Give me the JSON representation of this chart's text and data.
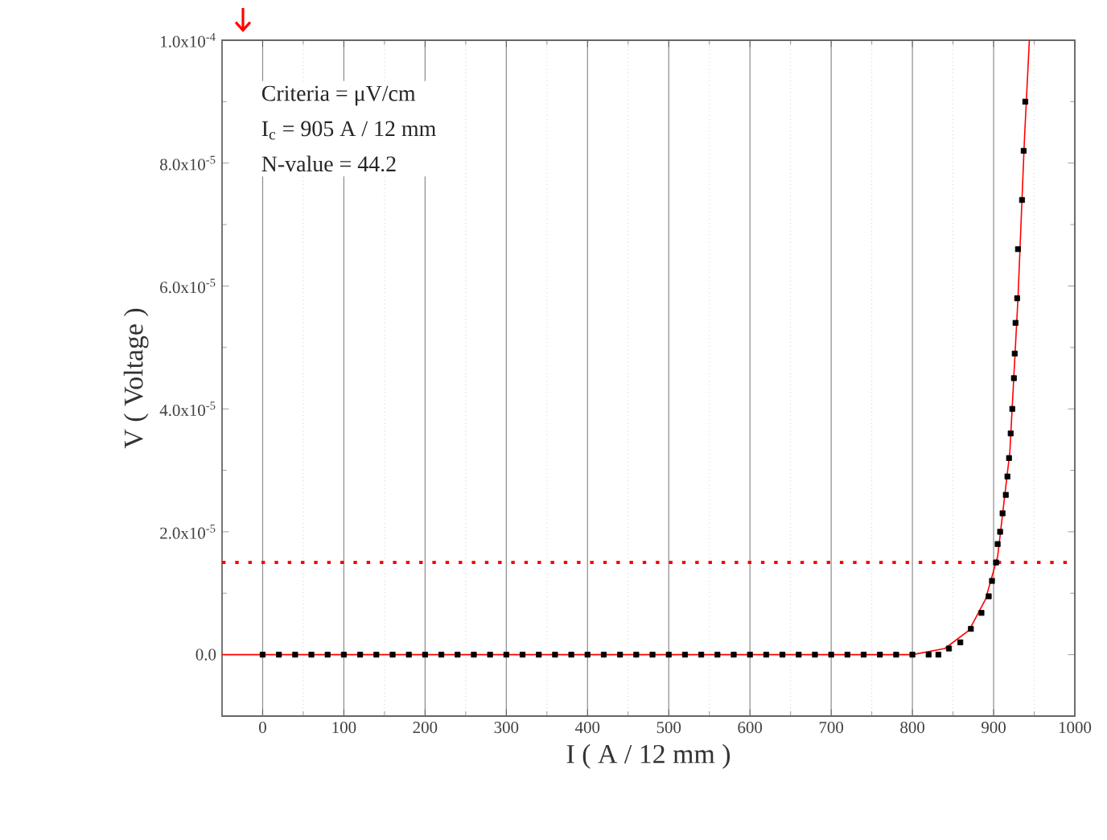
{
  "chart_data": {
    "type": "scatter",
    "xlabel": "I ( A / 12 mm )",
    "ylabel": "V ( Voltage )",
    "annotations": [
      "Criteria = μV/cm",
      "I$_{c}$ = 905 A / 12 mm",
      "N-value = 44.2"
    ],
    "xlim": [
      -50,
      1000
    ],
    "ylim": [
      -1e-05,
      0.0001
    ],
    "xticks": [
      0,
      100,
      200,
      300,
      400,
      500,
      600,
      700,
      800,
      900,
      1000
    ],
    "yticks": [
      {
        "value": 0,
        "label": "0.0"
      },
      {
        "value": 2e-05,
        "label": "2.0x10$^{-5}$"
      },
      {
        "value": 4e-05,
        "label": "4.0x10$^{-5}$"
      },
      {
        "value": 6e-05,
        "label": "6.0x10$^{-5}$"
      },
      {
        "value": 8e-05,
        "label": "8.0x10$^{-5}$"
      },
      {
        "value": 0.0001,
        "label": "1.0x10$^{-4}$"
      }
    ],
    "grid": "x",
    "ref_lines": [
      {
        "axis": "y",
        "value": 1.5e-05,
        "color": "#ff0000",
        "line_style": "dotted"
      }
    ],
    "series": [
      {
        "color": "#000000",
        "marker": "square",
        "x": [
          0,
          20,
          40,
          60,
          80,
          100,
          120,
          140,
          160,
          180,
          200,
          220,
          240,
          260,
          280,
          300,
          320,
          340,
          360,
          380,
          400,
          420,
          440,
          460,
          480,
          500,
          520,
          540,
          560,
          580,
          600,
          620,
          640,
          660,
          680,
          700,
          720,
          740,
          760,
          780,
          800,
          820,
          832,
          845,
          859,
          872,
          885,
          894,
          898,
          903,
          905,
          908,
          911,
          915,
          917,
          919,
          921,
          923,
          925,
          926,
          927,
          929,
          930,
          935,
          937,
          939
        ],
        "values": [
          0,
          0,
          0,
          0,
          0,
          0,
          0,
          0,
          0,
          0,
          0,
          0,
          0,
          0,
          0,
          0,
          0,
          0,
          0,
          0,
          0,
          0,
          0,
          0,
          0,
          0,
          0,
          0,
          0,
          0,
          0,
          0,
          0,
          0,
          0,
          0,
          0,
          0,
          0,
          0,
          0,
          0,
          0,
          1e-06,
          2e-06,
          4.2e-06,
          6.8e-06,
          9.5e-06,
          1.2e-05,
          1.5e-05,
          1.8e-05,
          2e-05,
          2.3e-05,
          2.6e-05,
          2.9e-05,
          3.2e-05,
          3.6e-05,
          4e-05,
          4.5e-05,
          4.9e-05,
          5.4e-05,
          5.8e-05,
          6.6e-05,
          7.4e-05,
          8.2e-05,
          9e-05
        ]
      },
      {
        "type": "line",
        "color": "#ff0000",
        "marker": "none",
        "x": [
          -50,
          800,
          840,
          870,
          890,
          905,
          920,
          930,
          938,
          944
        ],
        "values": [
          0,
          0,
          1e-06,
          4e-06,
          9e-06,
          1.6e-05,
          3.3e-05,
          5.8e-05,
          8.4e-05,
          0.0001
        ]
      }
    ]
  }
}
